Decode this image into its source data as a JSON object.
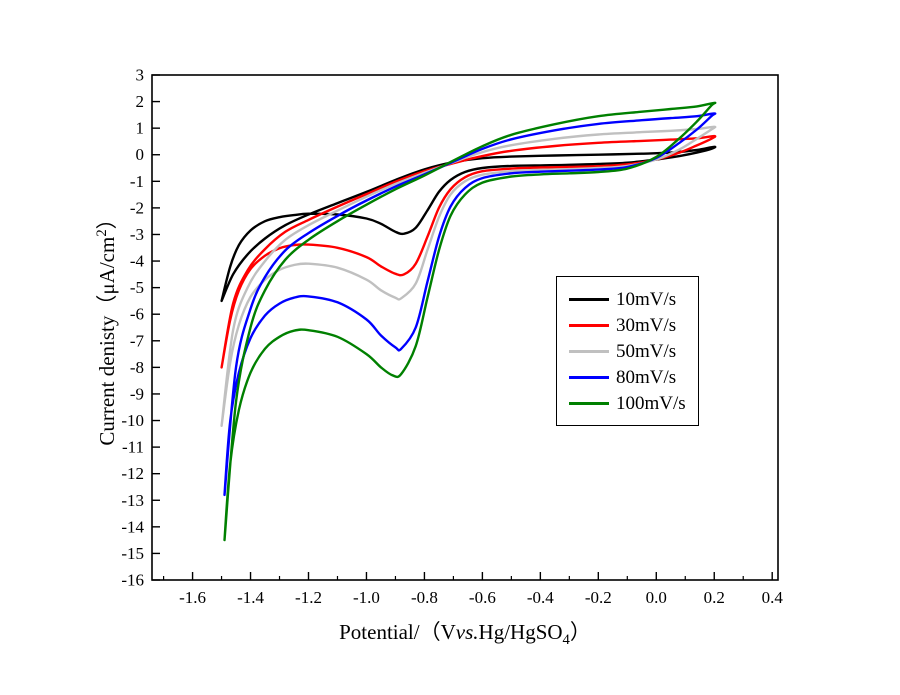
{
  "figure": {
    "background": "#ffffff"
  },
  "chart_data": {
    "type": "line",
    "title": "",
    "xlabel": {
      "pre": "Potential/（V",
      "italic": "vs.",
      "post": "Hg/HgSO",
      "sub": "4",
      "close": "）"
    },
    "ylabel": {
      "pre": "Current denisty（μA/cm",
      "sup": "2",
      "close": "）"
    },
    "xlim": [
      -1.74,
      0.42
    ],
    "ylim": [
      -16,
      3
    ],
    "grid": false,
    "legend_position": "middle-right",
    "x_ticks": [
      {
        "v": -1.6,
        "label": "-1.6"
      },
      {
        "v": -1.4,
        "label": "-1.4"
      },
      {
        "v": -1.2,
        "label": "-1.2"
      },
      {
        "v": -1.0,
        "label": "-1.0"
      },
      {
        "v": -0.8,
        "label": "-0.8"
      },
      {
        "v": -0.6,
        "label": "-0.6"
      },
      {
        "v": -0.4,
        "label": "-0.4"
      },
      {
        "v": -0.2,
        "label": "-0.2"
      },
      {
        "v": 0.0,
        "label": "0.0"
      },
      {
        "v": 0.2,
        "label": "0.2"
      },
      {
        "v": 0.4,
        "label": "0.4"
      }
    ],
    "x_minor_step": 0.1,
    "y_ticks": [
      {
        "v": 3,
        "label": "3"
      },
      {
        "v": 2,
        "label": "2"
      },
      {
        "v": 1,
        "label": "1"
      },
      {
        "v": 0,
        "label": "0"
      },
      {
        "v": -1,
        "label": "-1"
      },
      {
        "v": -2,
        "label": "-2"
      },
      {
        "v": -3,
        "label": "-3"
      },
      {
        "v": -4,
        "label": "-4"
      },
      {
        "v": -5,
        "label": "-5"
      },
      {
        "v": -6,
        "label": "-6"
      },
      {
        "v": -7,
        "label": "-7"
      },
      {
        "v": -8,
        "label": "-8"
      },
      {
        "v": -9,
        "label": "-9"
      },
      {
        "v": -10,
        "label": "-10"
      },
      {
        "v": -11,
        "label": "-11"
      },
      {
        "v": -12,
        "label": "-12"
      },
      {
        "v": -13,
        "label": "-13"
      },
      {
        "v": -14,
        "label": "-14"
      },
      {
        "v": -15,
        "label": "-15"
      },
      {
        "v": -16,
        "label": "-16"
      }
    ],
    "series": [
      {
        "name": "10mV/s",
        "color": "#000000",
        "width": 2.4,
        "points": [
          [
            -1.5,
            -5.5
          ],
          [
            -1.47,
            -4.2
          ],
          [
            -1.44,
            -3.4
          ],
          [
            -1.4,
            -2.85
          ],
          [
            -1.35,
            -2.5
          ],
          [
            -1.3,
            -2.35
          ],
          [
            -1.25,
            -2.27
          ],
          [
            -1.2,
            -2.22
          ],
          [
            -1.1,
            -2.25
          ],
          [
            -1.0,
            -2.4
          ],
          [
            -0.95,
            -2.6
          ],
          [
            -0.9,
            -2.9
          ],
          [
            -0.87,
            -2.97
          ],
          [
            -0.83,
            -2.75
          ],
          [
            -0.79,
            -2.1
          ],
          [
            -0.75,
            -1.4
          ],
          [
            -0.71,
            -0.95
          ],
          [
            -0.66,
            -0.65
          ],
          [
            -0.6,
            -0.5
          ],
          [
            -0.5,
            -0.42
          ],
          [
            -0.4,
            -0.4
          ],
          [
            -0.3,
            -0.38
          ],
          [
            -0.2,
            -0.35
          ],
          [
            -0.1,
            -0.3
          ],
          [
            0.0,
            -0.18
          ],
          [
            0.08,
            -0.05
          ],
          [
            0.14,
            0.08
          ],
          [
            0.19,
            0.22
          ],
          [
            0.2,
            0.3
          ],
          [
            0.14,
            0.18
          ],
          [
            0.05,
            0.08
          ],
          [
            -0.05,
            0.04
          ],
          [
            -0.2,
            0.0
          ],
          [
            -0.35,
            -0.03
          ],
          [
            -0.5,
            -0.07
          ],
          [
            -0.6,
            -0.13
          ],
          [
            -0.7,
            -0.28
          ],
          [
            -0.8,
            -0.55
          ],
          [
            -0.9,
            -0.95
          ],
          [
            -1.0,
            -1.4
          ],
          [
            -1.1,
            -1.82
          ],
          [
            -1.2,
            -2.25
          ],
          [
            -1.28,
            -2.65
          ],
          [
            -1.35,
            -3.15
          ],
          [
            -1.41,
            -3.75
          ],
          [
            -1.46,
            -4.5
          ],
          [
            -1.5,
            -5.5
          ]
        ]
      },
      {
        "name": "30mV/s",
        "color": "#ff0000",
        "width": 2.4,
        "points": [
          [
            -1.5,
            -8.0
          ],
          [
            -1.47,
            -6.2
          ],
          [
            -1.44,
            -5.1
          ],
          [
            -1.4,
            -4.3
          ],
          [
            -1.35,
            -3.8
          ],
          [
            -1.3,
            -3.52
          ],
          [
            -1.25,
            -3.4
          ],
          [
            -1.2,
            -3.38
          ],
          [
            -1.1,
            -3.5
          ],
          [
            -1.0,
            -3.85
          ],
          [
            -0.95,
            -4.2
          ],
          [
            -0.9,
            -4.48
          ],
          [
            -0.87,
            -4.5
          ],
          [
            -0.83,
            -4.1
          ],
          [
            -0.79,
            -3.1
          ],
          [
            -0.75,
            -2.0
          ],
          [
            -0.71,
            -1.3
          ],
          [
            -0.66,
            -0.85
          ],
          [
            -0.6,
            -0.62
          ],
          [
            -0.5,
            -0.52
          ],
          [
            -0.4,
            -0.48
          ],
          [
            -0.3,
            -0.46
          ],
          [
            -0.2,
            -0.43
          ],
          [
            -0.1,
            -0.36
          ],
          [
            0.0,
            -0.18
          ],
          [
            0.08,
            0.08
          ],
          [
            0.14,
            0.35
          ],
          [
            0.19,
            0.6
          ],
          [
            0.2,
            0.7
          ],
          [
            0.14,
            0.62
          ],
          [
            0.05,
            0.57
          ],
          [
            -0.05,
            0.52
          ],
          [
            -0.2,
            0.45
          ],
          [
            -0.35,
            0.33
          ],
          [
            -0.5,
            0.15
          ],
          [
            -0.6,
            -0.05
          ],
          [
            -0.7,
            -0.32
          ],
          [
            -0.8,
            -0.62
          ],
          [
            -0.9,
            -1.02
          ],
          [
            -1.0,
            -1.48
          ],
          [
            -1.1,
            -1.95
          ],
          [
            -1.2,
            -2.45
          ],
          [
            -1.28,
            -2.9
          ],
          [
            -1.35,
            -3.55
          ],
          [
            -1.41,
            -4.35
          ],
          [
            -1.46,
            -5.6
          ],
          [
            -1.5,
            -8.0
          ]
        ]
      },
      {
        "name": "50mV/s",
        "color": "#c0c0c0",
        "width": 2.4,
        "points": [
          [
            -1.5,
            -10.2
          ],
          [
            -1.47,
            -7.8
          ],
          [
            -1.44,
            -6.4
          ],
          [
            -1.4,
            -5.35
          ],
          [
            -1.35,
            -4.7
          ],
          [
            -1.3,
            -4.33
          ],
          [
            -1.25,
            -4.15
          ],
          [
            -1.2,
            -4.1
          ],
          [
            -1.1,
            -4.25
          ],
          [
            -1.0,
            -4.7
          ],
          [
            -0.95,
            -5.1
          ],
          [
            -0.9,
            -5.38
          ],
          [
            -0.88,
            -5.4
          ],
          [
            -0.83,
            -4.85
          ],
          [
            -0.79,
            -3.6
          ],
          [
            -0.75,
            -2.35
          ],
          [
            -0.71,
            -1.5
          ],
          [
            -0.66,
            -1.0
          ],
          [
            -0.6,
            -0.75
          ],
          [
            -0.5,
            -0.62
          ],
          [
            -0.4,
            -0.57
          ],
          [
            -0.3,
            -0.54
          ],
          [
            -0.2,
            -0.5
          ],
          [
            -0.1,
            -0.42
          ],
          [
            0.0,
            -0.18
          ],
          [
            0.08,
            0.2
          ],
          [
            0.14,
            0.6
          ],
          [
            0.19,
            0.95
          ],
          [
            0.2,
            1.05
          ],
          [
            0.14,
            0.97
          ],
          [
            0.05,
            0.9
          ],
          [
            -0.05,
            0.85
          ],
          [
            -0.2,
            0.76
          ],
          [
            -0.35,
            0.6
          ],
          [
            -0.5,
            0.36
          ],
          [
            -0.6,
            0.1
          ],
          [
            -0.7,
            -0.28
          ],
          [
            -0.8,
            -0.68
          ],
          [
            -0.9,
            -1.1
          ],
          [
            -1.0,
            -1.58
          ],
          [
            -1.1,
            -2.1
          ],
          [
            -1.2,
            -2.65
          ],
          [
            -1.28,
            -3.2
          ],
          [
            -1.35,
            -4.0
          ],
          [
            -1.41,
            -5.0
          ],
          [
            -1.46,
            -6.6
          ],
          [
            -1.5,
            -10.2
          ]
        ]
      },
      {
        "name": "80mV/s",
        "color": "#0000ff",
        "width": 2.4,
        "points": [
          [
            -1.49,
            -12.8
          ],
          [
            -1.47,
            -10.0
          ],
          [
            -1.44,
            -8.2
          ],
          [
            -1.4,
            -6.9
          ],
          [
            -1.35,
            -6.05
          ],
          [
            -1.3,
            -5.6
          ],
          [
            -1.25,
            -5.38
          ],
          [
            -1.2,
            -5.33
          ],
          [
            -1.1,
            -5.55
          ],
          [
            -1.0,
            -6.2
          ],
          [
            -0.95,
            -6.8
          ],
          [
            -0.9,
            -7.25
          ],
          [
            -0.88,
            -7.3
          ],
          [
            -0.83,
            -6.5
          ],
          [
            -0.79,
            -4.8
          ],
          [
            -0.75,
            -3.1
          ],
          [
            -0.71,
            -1.95
          ],
          [
            -0.66,
            -1.25
          ],
          [
            -0.6,
            -0.88
          ],
          [
            -0.5,
            -0.7
          ],
          [
            -0.4,
            -0.64
          ],
          [
            -0.3,
            -0.6
          ],
          [
            -0.2,
            -0.56
          ],
          [
            -0.1,
            -0.46
          ],
          [
            0.0,
            -0.12
          ],
          [
            0.08,
            0.45
          ],
          [
            0.14,
            0.95
          ],
          [
            0.19,
            1.45
          ],
          [
            0.2,
            1.55
          ],
          [
            0.14,
            1.45
          ],
          [
            0.05,
            1.38
          ],
          [
            -0.05,
            1.3
          ],
          [
            -0.2,
            1.16
          ],
          [
            -0.35,
            0.92
          ],
          [
            -0.5,
            0.58
          ],
          [
            -0.6,
            0.22
          ],
          [
            -0.7,
            -0.26
          ],
          [
            -0.8,
            -0.74
          ],
          [
            -0.9,
            -1.2
          ],
          [
            -1.0,
            -1.72
          ],
          [
            -1.1,
            -2.3
          ],
          [
            -1.2,
            -2.95
          ],
          [
            -1.28,
            -3.6
          ],
          [
            -1.35,
            -4.6
          ],
          [
            -1.4,
            -5.8
          ],
          [
            -1.45,
            -8.0
          ],
          [
            -1.49,
            -12.8
          ]
        ]
      },
      {
        "name": "100mV/s",
        "color": "#008000",
        "width": 2.4,
        "points": [
          [
            -1.49,
            -14.5
          ],
          [
            -1.47,
            -11.6
          ],
          [
            -1.44,
            -9.6
          ],
          [
            -1.4,
            -8.2
          ],
          [
            -1.35,
            -7.3
          ],
          [
            -1.3,
            -6.85
          ],
          [
            -1.25,
            -6.62
          ],
          [
            -1.2,
            -6.6
          ],
          [
            -1.1,
            -6.85
          ],
          [
            -1.0,
            -7.5
          ],
          [
            -0.95,
            -8.0
          ],
          [
            -0.91,
            -8.3
          ],
          [
            -0.88,
            -8.25
          ],
          [
            -0.83,
            -7.2
          ],
          [
            -0.79,
            -5.4
          ],
          [
            -0.75,
            -3.6
          ],
          [
            -0.71,
            -2.3
          ],
          [
            -0.66,
            -1.5
          ],
          [
            -0.6,
            -1.05
          ],
          [
            -0.5,
            -0.82
          ],
          [
            -0.4,
            -0.74
          ],
          [
            -0.3,
            -0.7
          ],
          [
            -0.2,
            -0.65
          ],
          [
            -0.1,
            -0.52
          ],
          [
            0.0,
            -0.08
          ],
          [
            0.08,
            0.62
          ],
          [
            0.14,
            1.25
          ],
          [
            0.19,
            1.85
          ],
          [
            0.2,
            1.95
          ],
          [
            0.14,
            1.82
          ],
          [
            0.05,
            1.72
          ],
          [
            -0.05,
            1.62
          ],
          [
            -0.2,
            1.45
          ],
          [
            -0.35,
            1.15
          ],
          [
            -0.5,
            0.75
          ],
          [
            -0.6,
            0.32
          ],
          [
            -0.7,
            -0.22
          ],
          [
            -0.8,
            -0.78
          ],
          [
            -0.9,
            -1.3
          ],
          [
            -1.0,
            -1.88
          ],
          [
            -1.1,
            -2.5
          ],
          [
            -1.2,
            -3.2
          ],
          [
            -1.28,
            -3.95
          ],
          [
            -1.35,
            -5.1
          ],
          [
            -1.4,
            -6.5
          ],
          [
            -1.45,
            -9.3
          ],
          [
            -1.49,
            -14.5
          ]
        ]
      },
      {
        "_comment": "",
        "name": "",
        "color": "",
        "width": 0,
        "points": []
      }
    ]
  }
}
